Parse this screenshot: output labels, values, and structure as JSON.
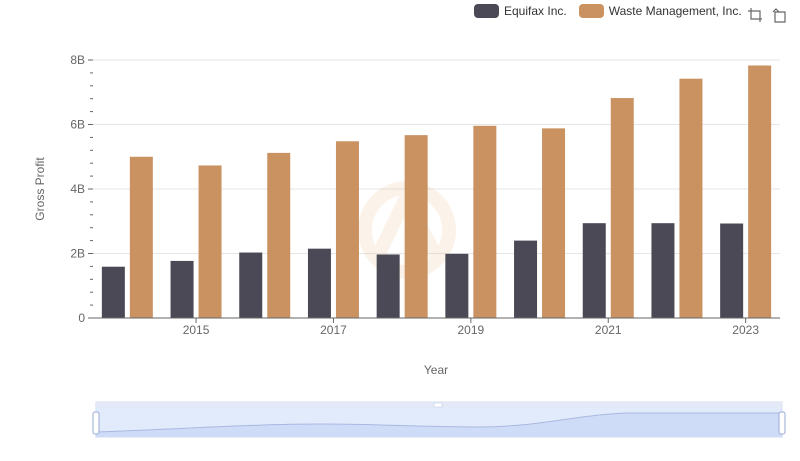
{
  "legend": {
    "items": [
      {
        "label": "Equifax Inc.",
        "color": "#4a4955"
      },
      {
        "label": "Waste Management, Inc.",
        "color": "#c99260"
      }
    ]
  },
  "toolbox": {
    "icons": [
      "zoom-icon",
      "restore-icon"
    ]
  },
  "chart_data": {
    "type": "bar",
    "xlabel": "Year",
    "ylabel": "Gross Profit",
    "categories": [
      "2014",
      "2015",
      "2016",
      "2017",
      "2018",
      "2019",
      "2020",
      "2021",
      "2022",
      "2023"
    ],
    "x_tick_labels": [
      "2015",
      "2017",
      "2019",
      "2021",
      "2023"
    ],
    "y_tick_labels": [
      "0",
      "2B",
      "4B",
      "6B",
      "8B"
    ],
    "ylim": [
      0,
      8000000000
    ],
    "grid": true,
    "legend_position": "top-right",
    "series": [
      {
        "name": "Equifax Inc.",
        "color": "#4a4955",
        "values": [
          1590000000,
          1770000000,
          2030000000,
          2150000000,
          1970000000,
          1990000000,
          2400000000,
          2940000000,
          2940000000,
          2930000000
        ]
      },
      {
        "name": "Waste Management, Inc.",
        "color": "#c99260",
        "values": [
          5000000000,
          4730000000,
          5120000000,
          5480000000,
          5670000000,
          5960000000,
          5880000000,
          6820000000,
          7420000000,
          7830000000
        ]
      }
    ]
  }
}
